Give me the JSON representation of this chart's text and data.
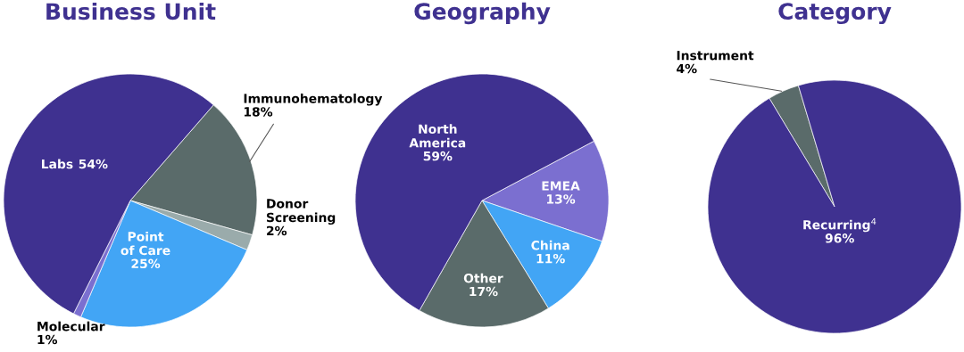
{
  "chart_data": [
    {
      "type": "pie",
      "title": "Business Unit",
      "categories": [
        "Immunohematology",
        "Donor\nScreening",
        "Point\nof Care",
        "Molecular",
        "Labs"
      ],
      "values": [
        18,
        2,
        25,
        1,
        54
      ],
      "colors": [
        "#5a6b6a",
        "#9aabab",
        "#42a5f5",
        "#7b6fd0",
        "#3f3190"
      ],
      "value_labels": [
        "18%",
        "2%",
        "25%",
        "1%",
        "54%"
      ]
    },
    {
      "type": "pie",
      "title": "Geography",
      "categories": [
        "EMEA",
        "China",
        "Other",
        "North\nAmerica"
      ],
      "values": [
        13,
        11,
        17,
        59
      ],
      "colors": [
        "#7b6fd0",
        "#42a5f5",
        "#5a6b6a",
        "#3f3190"
      ],
      "value_labels": [
        "13%",
        "11%",
        "17%",
        "59%"
      ]
    },
    {
      "type": "pie",
      "title": "Category",
      "categories": [
        "Instrument",
        "Recurring$^{4}$"
      ],
      "values": [
        4,
        96
      ],
      "colors": [
        "#5a6b6a",
        "#3f3190"
      ],
      "value_labels": [
        "4%",
        "96%"
      ]
    }
  ]
}
